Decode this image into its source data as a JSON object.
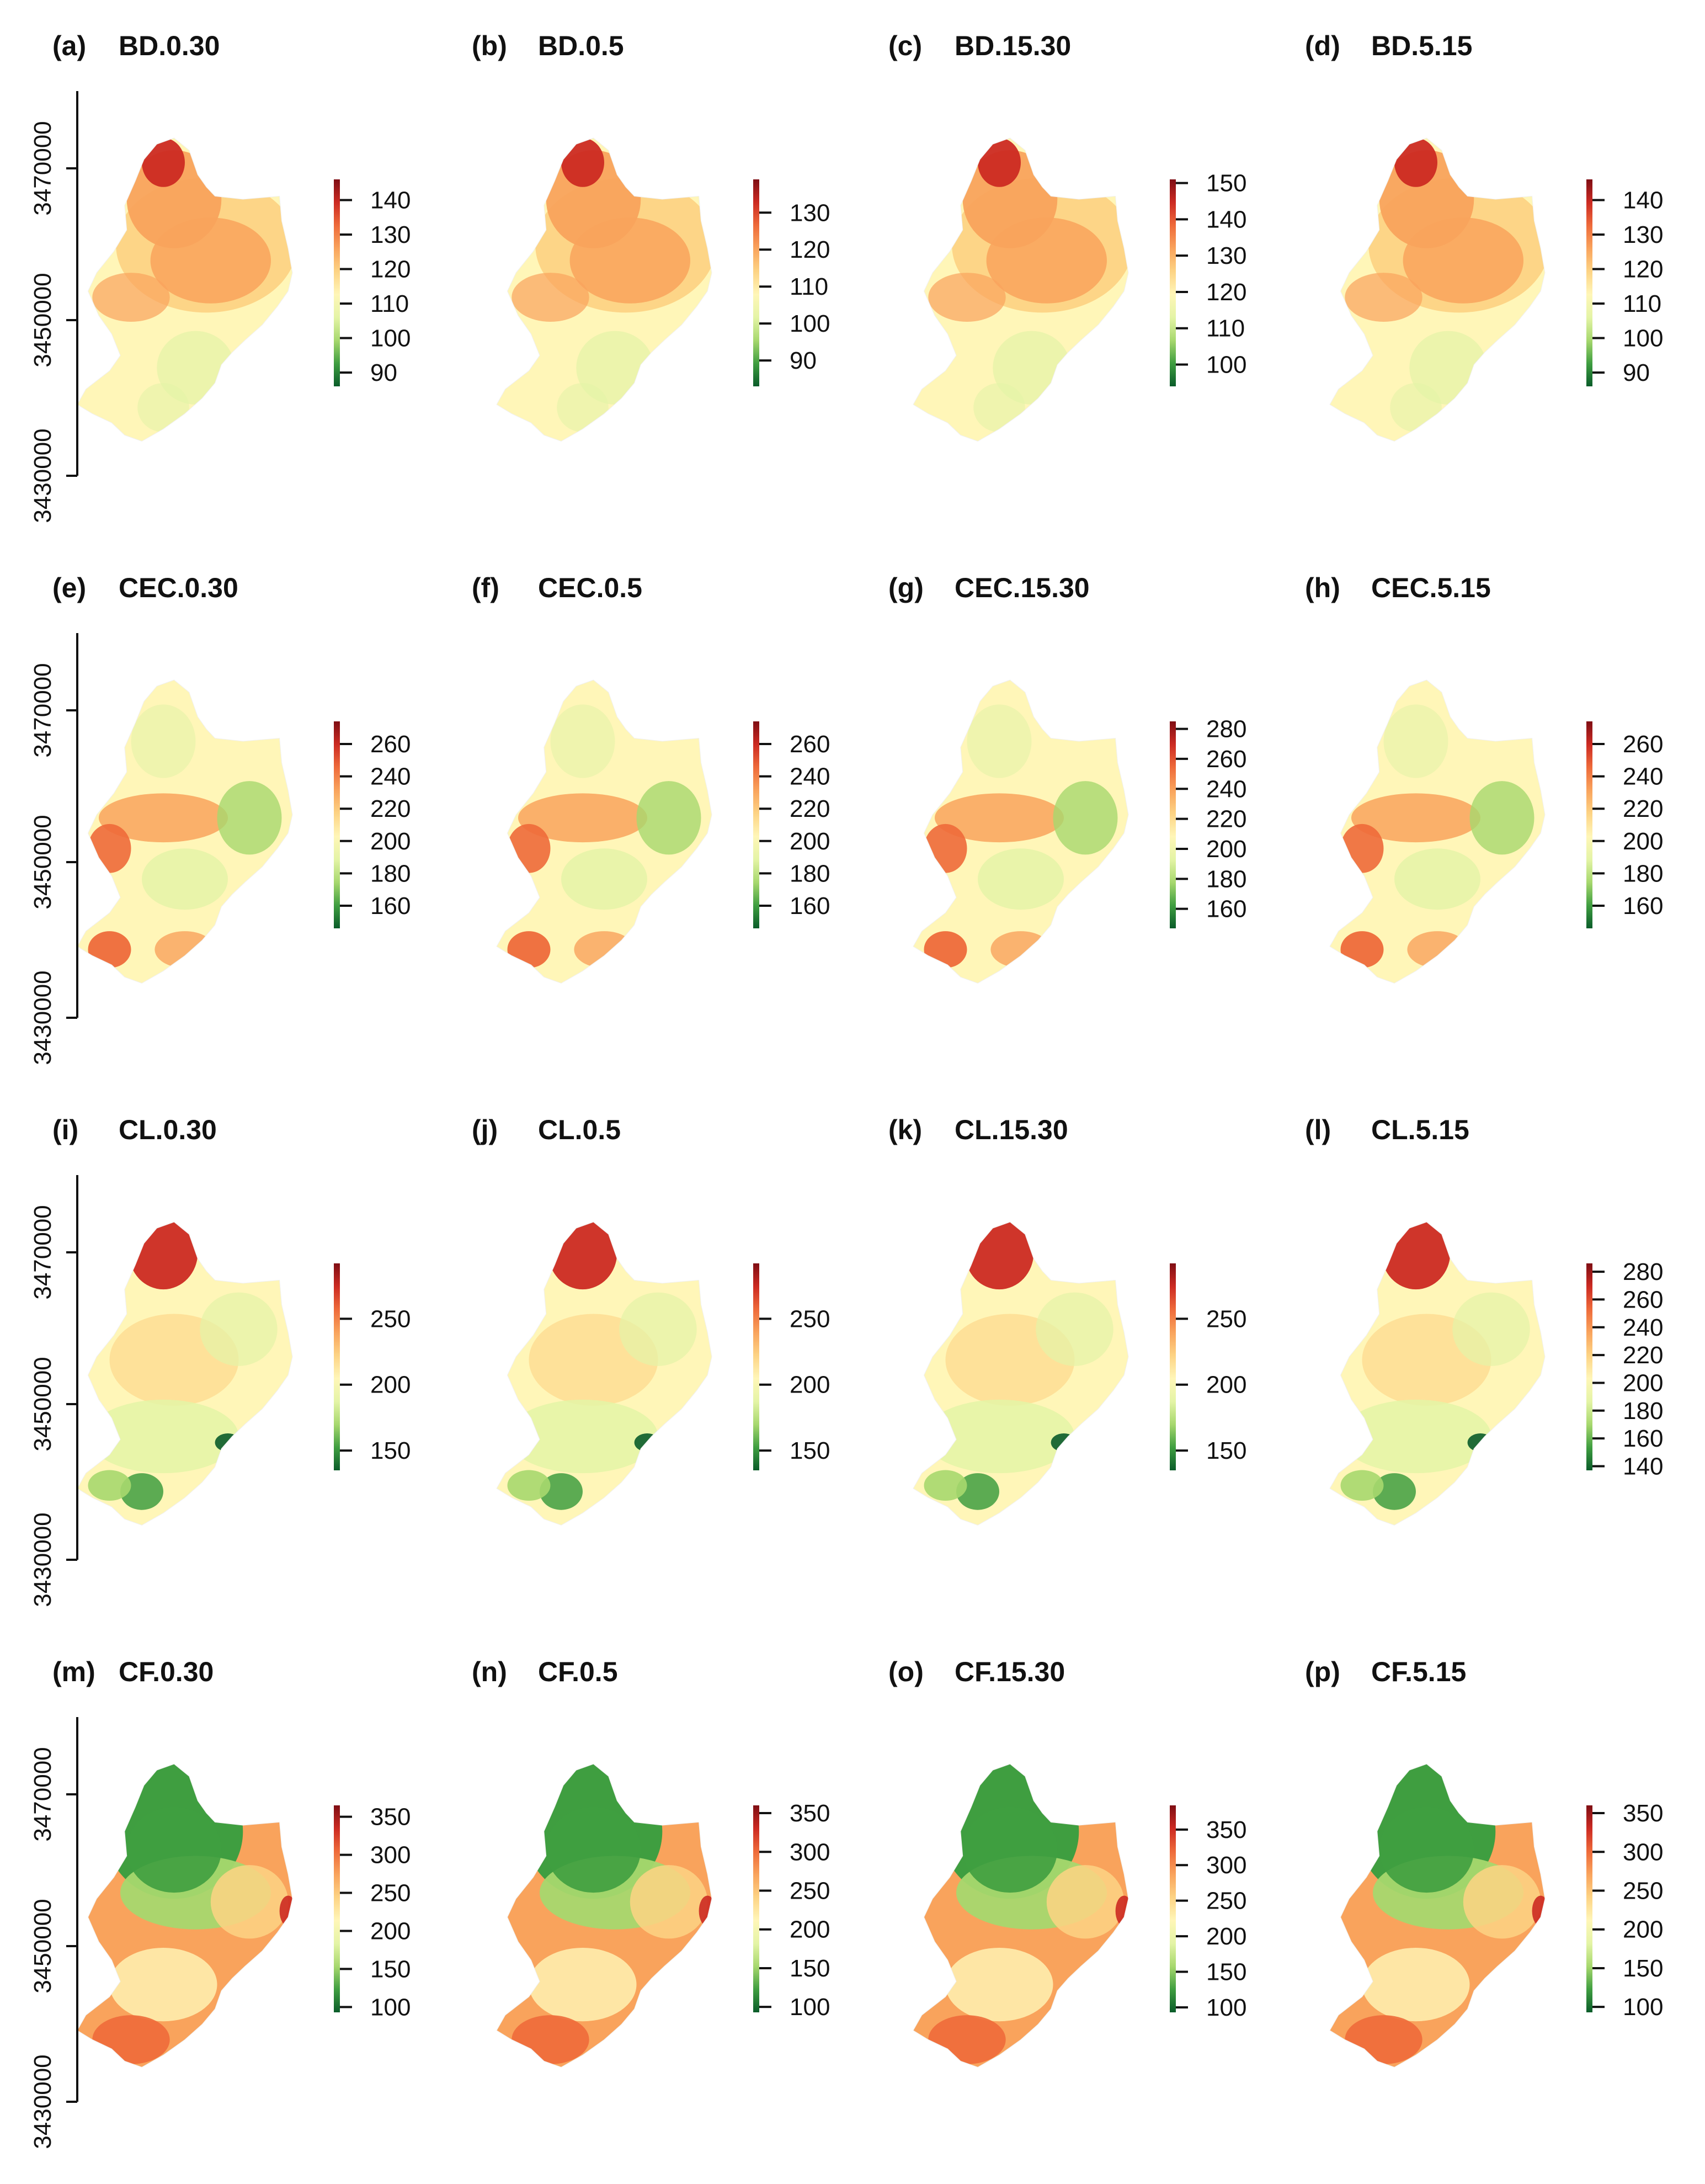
{
  "figure": {
    "y_axis_ticks": [
      "3430000",
      "3450000",
      "3470000"
    ]
  },
  "colors": {
    "ramp": [
      "#0a5c2a",
      "#3f9e40",
      "#a7d86e",
      "#e4f4a6",
      "#fff6b8",
      "#fdd384",
      "#f9a35c",
      "#ee6a3a",
      "#cc2a22",
      "#7f0e14"
    ]
  },
  "panels": [
    {
      "tag": "(a)",
      "title": "BD.0.30",
      "legend_ticks": [
        "90",
        "100",
        "110",
        "120",
        "130",
        "140"
      ],
      "legend_range": [
        86,
        146
      ],
      "scheme": "bd"
    },
    {
      "tag": "(b)",
      "title": "BD.0.5",
      "legend_ticks": [
        "90",
        "100",
        "110",
        "120",
        "130"
      ],
      "legend_range": [
        83,
        139
      ],
      "scheme": "bd"
    },
    {
      "tag": "(c)",
      "title": "BD.15.30",
      "legend_ticks": [
        "100",
        "110",
        "120",
        "130",
        "140",
        "150"
      ],
      "legend_range": [
        94,
        151
      ],
      "scheme": "bd"
    },
    {
      "tag": "(d)",
      "title": "BD.5.15",
      "legend_ticks": [
        "90",
        "100",
        "110",
        "120",
        "130",
        "140"
      ],
      "legend_range": [
        86,
        146
      ],
      "scheme": "bd"
    },
    {
      "tag": "(e)",
      "title": "CEC.0.30",
      "legend_ticks": [
        "160",
        "180",
        "200",
        "220",
        "240",
        "260"
      ],
      "legend_range": [
        146,
        274
      ],
      "scheme": "cec"
    },
    {
      "tag": "(f)",
      "title": "CEC.0.5",
      "legend_ticks": [
        "160",
        "180",
        "200",
        "220",
        "240",
        "260"
      ],
      "legend_range": [
        146,
        274
      ],
      "scheme": "cec"
    },
    {
      "tag": "(g)",
      "title": "CEC.15.30",
      "legend_ticks": [
        "160",
        "180",
        "200",
        "220",
        "240",
        "260",
        "280"
      ],
      "legend_range": [
        147,
        285
      ],
      "scheme": "cec"
    },
    {
      "tag": "(h)",
      "title": "CEC.5.15",
      "legend_ticks": [
        "160",
        "180",
        "200",
        "220",
        "240",
        "260"
      ],
      "legend_range": [
        146,
        274
      ],
      "scheme": "cec"
    },
    {
      "tag": "(i)",
      "title": "CL.0.30",
      "legend_ticks": [
        "150",
        "200",
        "250"
      ],
      "legend_range": [
        135,
        292
      ],
      "scheme": "cl"
    },
    {
      "tag": "(j)",
      "title": "CL.0.5",
      "legend_ticks": [
        "150",
        "200",
        "250"
      ],
      "legend_range": [
        135,
        292
      ],
      "scheme": "cl"
    },
    {
      "tag": "(k)",
      "title": "CL.15.30",
      "legend_ticks": [
        "150",
        "200",
        "250"
      ],
      "legend_range": [
        135,
        292
      ],
      "scheme": "cl"
    },
    {
      "tag": "(l)",
      "title": "CL.5.15",
      "legend_ticks": [
        "140",
        "160",
        "180",
        "200",
        "220",
        "240",
        "260",
        "280"
      ],
      "legend_range": [
        137,
        286
      ],
      "scheme": "cl"
    },
    {
      "tag": "(m)",
      "title": "CF.0.30",
      "legend_ticks": [
        "100",
        "150",
        "200",
        "250",
        "300",
        "350"
      ],
      "legend_range": [
        93,
        365
      ],
      "scheme": "cf"
    },
    {
      "tag": "(n)",
      "title": "CF.0.5",
      "legend_ticks": [
        "100",
        "150",
        "200",
        "250",
        "300",
        "350"
      ],
      "legend_range": [
        93,
        360
      ],
      "scheme": "cf"
    },
    {
      "tag": "(o)",
      "title": "CF.15.30",
      "legend_ticks": [
        "100",
        "150",
        "200",
        "250",
        "300",
        "350"
      ],
      "legend_range": [
        93,
        384
      ],
      "scheme": "cf"
    },
    {
      "tag": "(p)",
      "title": "CF.5.15",
      "legend_ticks": [
        "100",
        "150",
        "200",
        "250",
        "300",
        "350"
      ],
      "legend_range": [
        93,
        360
      ],
      "scheme": "cf"
    }
  ],
  "chart_data": [
    {
      "type": "heatmap",
      "panel": "(a)",
      "title": "BD.0.30",
      "ylabel": "",
      "yticks": [
        3430000,
        3450000,
        3470000
      ],
      "colorbar_ticks": [
        90,
        100,
        110,
        120,
        130,
        140
      ],
      "colorbar_range": [
        86,
        146
      ]
    },
    {
      "type": "heatmap",
      "panel": "(b)",
      "title": "BD.0.5",
      "colorbar_ticks": [
        90,
        100,
        110,
        120,
        130
      ],
      "colorbar_range": [
        83,
        139
      ]
    },
    {
      "type": "heatmap",
      "panel": "(c)",
      "title": "BD.15.30",
      "colorbar_ticks": [
        100,
        110,
        120,
        130,
        140,
        150
      ],
      "colorbar_range": [
        94,
        151
      ]
    },
    {
      "type": "heatmap",
      "panel": "(d)",
      "title": "BD.5.15",
      "colorbar_ticks": [
        90,
        100,
        110,
        120,
        130,
        140
      ],
      "colorbar_range": [
        86,
        146
      ]
    },
    {
      "type": "heatmap",
      "panel": "(e)",
      "title": "CEC.0.30",
      "yticks": [
        3430000,
        3450000,
        3470000
      ],
      "colorbar_ticks": [
        160,
        180,
        200,
        220,
        240,
        260
      ],
      "colorbar_range": [
        146,
        274
      ]
    },
    {
      "type": "heatmap",
      "panel": "(f)",
      "title": "CEC.0.5",
      "colorbar_ticks": [
        160,
        180,
        200,
        220,
        240,
        260
      ],
      "colorbar_range": [
        146,
        274
      ]
    },
    {
      "type": "heatmap",
      "panel": "(g)",
      "title": "CEC.15.30",
      "colorbar_ticks": [
        160,
        180,
        200,
        220,
        240,
        260,
        280
      ],
      "colorbar_range": [
        147,
        285
      ]
    },
    {
      "type": "heatmap",
      "panel": "(h)",
      "title": "CEC.5.15",
      "colorbar_ticks": [
        160,
        180,
        200,
        220,
        240,
        260
      ],
      "colorbar_range": [
        146,
        274
      ]
    },
    {
      "type": "heatmap",
      "panel": "(i)",
      "title": "CL.0.30",
      "yticks": [
        3430000,
        3450000,
        3470000
      ],
      "colorbar_ticks": [
        150,
        200,
        250
      ],
      "colorbar_range": [
        135,
        292
      ]
    },
    {
      "type": "heatmap",
      "panel": "(j)",
      "title": "CL.0.5",
      "colorbar_ticks": [
        150,
        200,
        250
      ],
      "colorbar_range": [
        135,
        292
      ]
    },
    {
      "type": "heatmap",
      "panel": "(k)",
      "title": "CL.15.30",
      "colorbar_ticks": [
        150,
        200,
        250
      ],
      "colorbar_range": [
        135,
        292
      ]
    },
    {
      "type": "heatmap",
      "panel": "(l)",
      "title": "CL.5.15",
      "colorbar_ticks": [
        140,
        160,
        180,
        200,
        220,
        240,
        260,
        280
      ],
      "colorbar_range": [
        137,
        286
      ]
    },
    {
      "type": "heatmap",
      "panel": "(m)",
      "title": "CF.0.30",
      "yticks": [
        3430000,
        3450000,
        3470000
      ],
      "colorbar_ticks": [
        100,
        150,
        200,
        250,
        300,
        350
      ],
      "colorbar_range": [
        93,
        365
      ]
    },
    {
      "type": "heatmap",
      "panel": "(n)",
      "title": "CF.0.5",
      "colorbar_ticks": [
        100,
        150,
        200,
        250,
        300,
        350
      ],
      "colorbar_range": [
        93,
        360
      ]
    },
    {
      "type": "heatmap",
      "panel": "(o)",
      "title": "CF.15.30",
      "colorbar_ticks": [
        100,
        150,
        200,
        250,
        300,
        350
      ],
      "colorbar_range": [
        93,
        384
      ]
    },
    {
      "type": "heatmap",
      "panel": "(p)",
      "title": "CF.5.15",
      "colorbar_ticks": [
        100,
        150,
        200,
        250,
        300,
        350
      ],
      "colorbar_range": [
        93,
        360
      ]
    }
  ]
}
